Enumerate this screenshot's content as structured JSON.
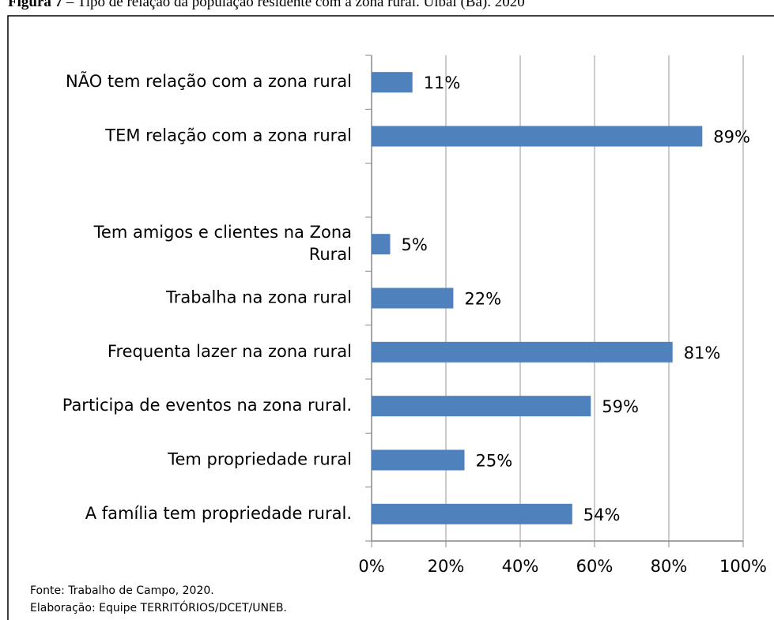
{
  "chart_data": {
    "type": "bar",
    "orientation": "horizontal",
    "title_label": "Figura 7",
    "title": "– Tipo de relação da população residente com a zona rural. Uibaí (Ba). 2020",
    "categories": [
      "NÃO tem relação com a zona rural",
      "TEM relação com a zona rural",
      null,
      "Tem amigos e clientes na Zona\nRural",
      "Trabalha na zona rural",
      "Frequenta lazer na zona rural",
      "Participa de eventos na zona rural.",
      "Tem propriedade rural",
      "A família tem propriedade rural."
    ],
    "values": [
      11,
      89,
      null,
      5,
      22,
      81,
      59,
      25,
      54
    ],
    "value_labels": [
      "11%",
      "89%",
      null,
      "5%",
      "22%",
      "81%",
      "59%",
      "25%",
      "54%"
    ],
    "color": "#4f81bd",
    "xlim": [
      0,
      100
    ],
    "xticks": [
      {
        "value": 0,
        "label": "0%"
      },
      {
        "value": 20,
        "label": "20%"
      },
      {
        "value": 40,
        "label": "40%"
      },
      {
        "value": 60,
        "label": "60%"
      },
      {
        "value": 80,
        "label": "80%"
      },
      {
        "value": 100,
        "label": "100%"
      }
    ],
    "grid": true,
    "notes": [
      "Fonte: Trabalho de  Campo, 2020.",
      "Elaboração: Equipe  TERRITÓRIOS/DCET/UNEB."
    ]
  }
}
